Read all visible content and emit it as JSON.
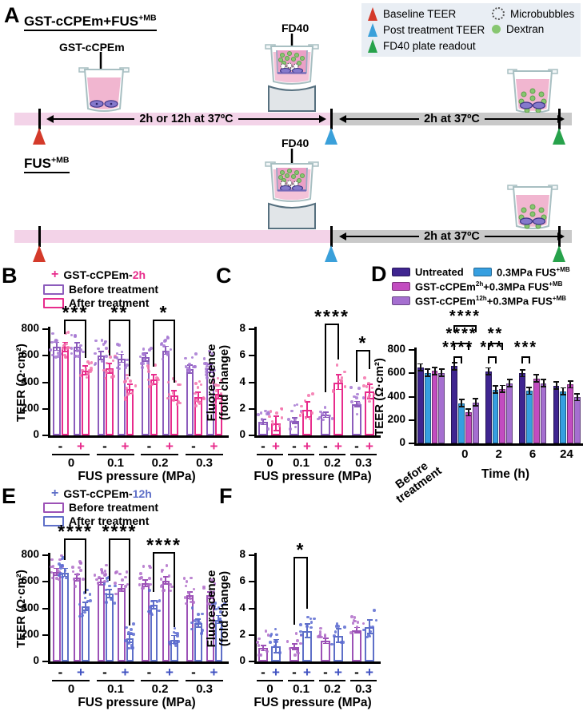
{
  "colors": {
    "baseline": "#d43a2a",
    "post": "#3aa0da",
    "readout": "#27a24b",
    "dextran": "#87c670",
    "timeline_pink": "#f3d3e8",
    "timeline_gray": "#c9c9c9",
    "legend_bg": "#e9eef4",
    "b_purple": "#8c5cbc",
    "b_pink": "#e82c8c",
    "e_purple": "#9c51b6",
    "e_blue": "#5e6fc8",
    "d_untreated": "#3f2590",
    "d_fus": "#369fe0",
    "d_2h": "#c24cc0",
    "d_12h": "#a56fd0"
  },
  "panels": {
    "A": {
      "label": "A",
      "conditions": [
        {
          "title": "GST-cCPEm+FUS",
          "sup": "+MB"
        },
        {
          "title": "FUS",
          "sup": "+MB"
        }
      ],
      "gst_label": "GST-cCPEm",
      "fd40_label_1": "FD40",
      "fd40_label_2": "FD40",
      "timeline1_left": "2h or 12h at 37ºC",
      "timeline1_right": "2h at 37ºC",
      "timeline2_right": "2h at 37ºC",
      "legend": {
        "items": [
          {
            "icon": "red-triangle",
            "label": "Baseline TEER"
          },
          {
            "icon": "blue-triangle",
            "label": "Post treatment TEER"
          },
          {
            "icon": "green-triangle",
            "label": "FD40 plate readout"
          },
          {
            "icon": "microbubbles",
            "label": "Microbubbles"
          },
          {
            "icon": "dextran-dot",
            "label": "Dextran"
          }
        ]
      }
    },
    "B": {
      "label": "B",
      "legend_plus": "+",
      "legend_name": "GST-cCPEm-",
      "legend_time": "2h",
      "legend_items": [
        "Before treatment",
        "After treatment"
      ]
    },
    "C": {
      "label": "C"
    },
    "D": {
      "label": "D",
      "legend": [
        {
          "parts": [
            "Untreated",
            "",
            "",
            ""
          ]
        },
        {
          "parts": [
            "0.3MPa FUS",
            "+MB",
            "",
            ""
          ]
        },
        {
          "parts": [
            "GST-cCPEm",
            "2h",
            "+0.3MPa FUS",
            "+MB"
          ]
        },
        {
          "parts": [
            "GST-cCPEm",
            "12h",
            "+0.3MPa FUS",
            "+MB"
          ]
        }
      ]
    },
    "E": {
      "label": "E",
      "legend_plus": "+",
      "legend_name": "GST-cCPEm-",
      "legend_time": "12h",
      "legend_items": [
        "Before treatment",
        "After treatment"
      ]
    },
    "F": {
      "label": "F"
    }
  },
  "chart_data": [
    {
      "id": "B",
      "type": "bar",
      "ylabel": "TEER (Ω·cm²)",
      "xlabel": "FUS pressure (MPa)",
      "ylim": [
        0,
        800
      ],
      "yticks": [
        0,
        200,
        400,
        600,
        800
      ],
      "groups": [
        "0",
        "0.1",
        "0.2",
        "0.3"
      ],
      "pair_labels": [
        "-",
        "+"
      ],
      "plus_color": "#e82c8c",
      "series": [
        {
          "name": "Before treatment",
          "color": "#8c5cbc",
          "dot_color": "#a678d2",
          "error": 30,
          "values": [
            670,
            665,
            600,
            580,
            590,
            640,
            500,
            505
          ]
        },
        {
          "name": "After treatment",
          "color": "#e82c8c",
          "dot_color": "#f373ac",
          "error": 35,
          "values": [
            665,
            490,
            505,
            350,
            420,
            300,
            290,
            310
          ]
        }
      ],
      "significance": [
        {
          "bar1": 1,
          "bar2": 3,
          "stars": "***",
          "top": 870
        },
        {
          "bar1": 5,
          "bar2": 7,
          "stars": "**",
          "top": 870
        },
        {
          "bar1": 9,
          "bar2": 11,
          "stars": "*",
          "top": 870
        }
      ]
    },
    {
      "id": "C",
      "type": "bar",
      "ylabel_lines": [
        "Fluorescence",
        "(fold change)"
      ],
      "xlabel": "FUS pressure (MPa)",
      "ylim": [
        0,
        8
      ],
      "yticks": [
        0,
        2,
        4,
        6,
        8
      ],
      "groups": [
        "0",
        "0.1",
        "0.2",
        "0.3"
      ],
      "pair_labels": [
        "-",
        "+"
      ],
      "plus_color": "#e82c8c",
      "series": [
        {
          "name": "- (no GST-cCPEm)",
          "color": "#8c5cbc",
          "dot_color": "#a678d2",
          "error": 0.2,
          "values": [
            1.0,
            1.1,
            1.55,
            2.35
          ]
        },
        {
          "name": "+ GST-cCPEm-2h",
          "color": "#e82c8c",
          "dot_color": "#f373ac",
          "error": 0.55,
          "values": [
            0.9,
            1.95,
            4.0,
            3.3
          ]
        }
      ],
      "significance": [
        {
          "bar1": 4,
          "bar2": 5,
          "stars": "****",
          "top": 8.45
        },
        {
          "bar1": 6,
          "bar2": 7,
          "stars": "*",
          "top": 6.45
        }
      ]
    },
    {
      "id": "D",
      "type": "bar",
      "ylabel": "TEER (Ω·cm²)",
      "xlabel": "Time (h)",
      "ylim": [
        0,
        800
      ],
      "yticks": [
        0,
        200,
        400,
        600,
        800
      ],
      "groups": [
        "Before treatment",
        "0",
        "2",
        "6",
        "24"
      ],
      "series": [
        {
          "name": "Untreated",
          "color": "#3f2590",
          "error": 30,
          "values": [
            650,
            660,
            615,
            600,
            495
          ]
        },
        {
          "name": "0.3MPa FUS+MB",
          "color": "#369fe0",
          "error": 30,
          "values": [
            605,
            345,
            460,
            450,
            445
          ]
        },
        {
          "name": "GST-cCPEm2h+0.3MPa FUS+MB",
          "color": "#c24cc0",
          "error": 30,
          "values": [
            620,
            265,
            465,
            555,
            505
          ]
        },
        {
          "name": "GST-cCPEm12h+0.3MPa FUS+MB",
          "color": "#a56fd0",
          "error": 30,
          "values": [
            605,
            350,
            515,
            515,
            395
          ]
        }
      ],
      "significance": [
        {
          "bar1": 4,
          "bar2": 5,
          "stars": "****",
          "top": 745
        },
        {
          "bar1": 8,
          "bar2": 9,
          "stars": "***",
          "top": 745
        },
        {
          "bar1": 12,
          "bar2": 13,
          "stars": "***",
          "top": 745
        },
        {
          "bar1": 4,
          "bar2": 6,
          "stars": "****",
          "top": 860
        },
        {
          "bar1": 8,
          "bar2": 10,
          "stars": "**",
          "top": 860
        },
        {
          "bar1": 4,
          "bar2": 7,
          "stars": "****",
          "top": 1010
        }
      ]
    },
    {
      "id": "E",
      "type": "bar",
      "ylabel": "TEER (Ω·cm²)",
      "xlabel": "FUS pressure (MPa)",
      "ylim": [
        0,
        800
      ],
      "yticks": [
        0,
        200,
        400,
        600,
        800
      ],
      "groups": [
        "0",
        "0.1",
        "0.2",
        "0.3"
      ],
      "pair_labels": [
        "-",
        "+"
      ],
      "plus_color": "#3f51c1",
      "series": [
        {
          "name": "Before treatment",
          "color": "#9c51b6",
          "dot_color": "#b06fc9",
          "error": 25,
          "values": [
            675,
            630,
            600,
            555,
            590,
            610,
            500,
            500
          ]
        },
        {
          "name": "After treatment",
          "color": "#5e6fc8",
          "dot_color": "#5d6cd1",
          "error": 30,
          "values": [
            670,
            415,
            510,
            175,
            425,
            165,
            290,
            315
          ]
        }
      ],
      "significance": [
        {
          "bar1": 1,
          "bar2": 3,
          "stars": "****",
          "top": 925
        },
        {
          "bar1": 5,
          "bar2": 7,
          "stars": "****",
          "top": 925
        },
        {
          "bar1": 9,
          "bar2": 11,
          "stars": "****",
          "top": 825
        }
      ]
    },
    {
      "id": "F",
      "type": "bar",
      "ylabel_lines": [
        "Fluorescence",
        "(fold change)"
      ],
      "xlabel": "FUS pressure (MPa)",
      "ylim": [
        0,
        8
      ],
      "yticks": [
        0,
        2,
        4,
        6,
        8
      ],
      "groups": [
        "0",
        "0.1",
        "0.2",
        "0.3"
      ],
      "pair_labels": [
        "-",
        "+"
      ],
      "plus_color": "#3f51c1",
      "series": [
        {
          "name": "- (no GST-cCPEm)",
          "color": "#9c51b6",
          "dot_color": "#b06fc9",
          "error": 0.2,
          "values": [
            1.0,
            1.1,
            1.55,
            2.35
          ]
        },
        {
          "name": "+ GST-cCPEm-12h",
          "color": "#5e6fc8",
          "dot_color": "#5d6cd1",
          "error": 0.5,
          "values": [
            1.15,
            2.3,
            1.95,
            2.6
          ]
        }
      ],
      "significance": [
        {
          "bar1": 2,
          "bar2": 3,
          "stars": "*",
          "top": 7.9
        }
      ]
    }
  ]
}
